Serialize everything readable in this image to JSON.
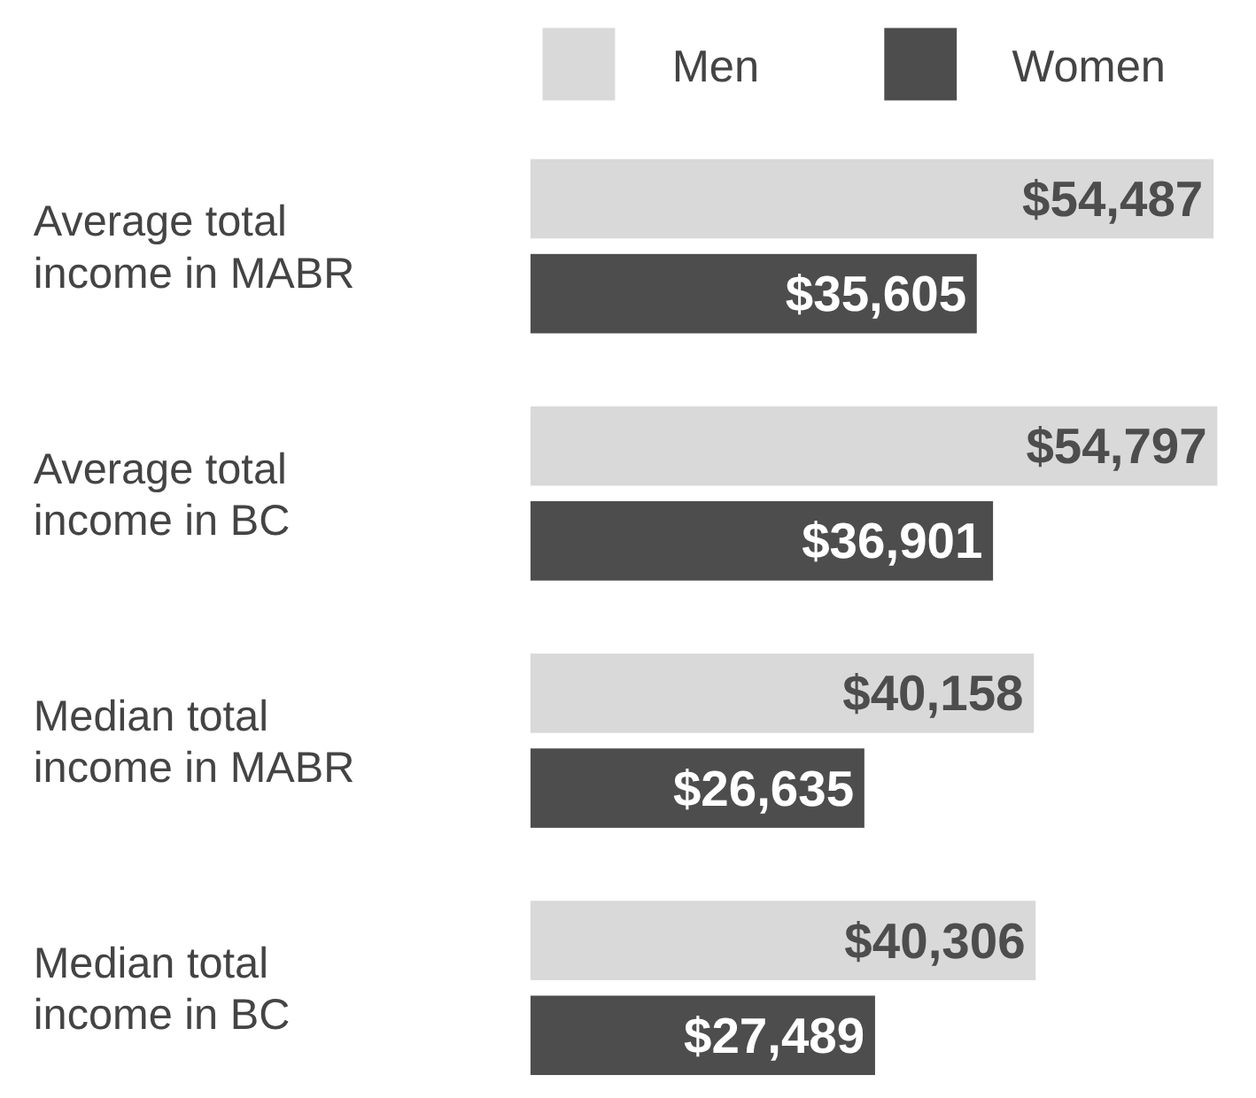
{
  "chart_data": {
    "type": "bar",
    "orientation": "horizontal",
    "categories": [
      "Average total income in MABR",
      "Average total income in BC",
      "Median total income in MABR",
      "Median total income in BC"
    ],
    "series": [
      {
        "name": "Men",
        "color": "#d9d9d9",
        "values": [
          54487,
          54797,
          40158,
          40306
        ],
        "value_labels": [
          "$54,487",
          "$54,797",
          "$40,158",
          "$40,306"
        ]
      },
      {
        "name": "Women",
        "color": "#4d4d4d",
        "values": [
          35605,
          36901,
          26635,
          27489
        ],
        "value_labels": [
          "$35,605",
          "$36,901",
          "$26,635",
          "$27,489"
        ]
      }
    ],
    "legend": "top right"
  }
}
